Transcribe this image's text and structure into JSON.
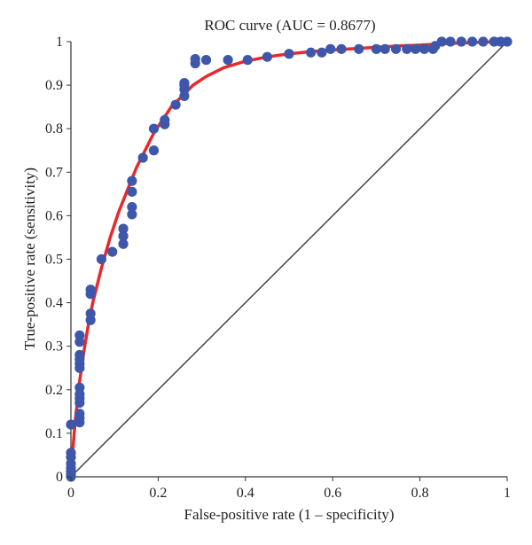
{
  "chart_data": {
    "type": "scatter",
    "title": "ROC curve (AUC = 0.8677)",
    "xlabel": "False-positive rate (1 – specificity)",
    "ylabel": "True-positive rate (sensitivity)",
    "xlim": [
      0,
      1
    ],
    "ylim": [
      0,
      1
    ],
    "x_ticks": [
      0,
      0.2,
      0.4,
      0.6,
      0.8,
      1
    ],
    "y_ticks": [
      0,
      0.1,
      0.2,
      0.3,
      0.4,
      0.5,
      0.6,
      0.7,
      0.8,
      0.9,
      1
    ],
    "x_tick_labels": [
      "0",
      "0.2",
      "0.4",
      "0.6",
      "0.8",
      "1"
    ],
    "y_tick_labels": [
      "0",
      "0.1",
      "0.2",
      "0.3",
      "0.4",
      "0.5",
      "0.6",
      "0.7",
      "0.8",
      "0.9",
      "1"
    ],
    "grid": false,
    "colors": {
      "points": "#3f57aa",
      "fit": "#e8282b",
      "diagonal": "#444444",
      "axis": "#333333"
    },
    "points": [
      [
        0,
        0
      ],
      [
        0,
        0.005
      ],
      [
        0,
        0.012
      ],
      [
        0,
        0.02
      ],
      [
        0,
        0.03
      ],
      [
        0,
        0.045
      ],
      [
        0,
        0.055
      ],
      [
        0,
        0.12
      ],
      [
        0.02,
        0.125
      ],
      [
        0.02,
        0.135
      ],
      [
        0.02,
        0.145
      ],
      [
        0.02,
        0.17
      ],
      [
        0.02,
        0.18
      ],
      [
        0.02,
        0.19
      ],
      [
        0.02,
        0.205
      ],
      [
        0.02,
        0.25
      ],
      [
        0.02,
        0.26
      ],
      [
        0.02,
        0.27
      ],
      [
        0.02,
        0.28
      ],
      [
        0.02,
        0.31
      ],
      [
        0.02,
        0.325
      ],
      [
        0.045,
        0.36
      ],
      [
        0.045,
        0.375
      ],
      [
        0.045,
        0.42
      ],
      [
        0.045,
        0.43
      ],
      [
        0.07,
        0.5
      ],
      [
        0.095,
        0.517
      ],
      [
        0.12,
        0.535
      ],
      [
        0.12,
        0.553
      ],
      [
        0.12,
        0.57
      ],
      [
        0.14,
        0.603
      ],
      [
        0.14,
        0.62
      ],
      [
        0.14,
        0.655
      ],
      [
        0.14,
        0.68
      ],
      [
        0.165,
        0.733
      ],
      [
        0.19,
        0.75
      ],
      [
        0.19,
        0.8
      ],
      [
        0.215,
        0.81
      ],
      [
        0.215,
        0.82
      ],
      [
        0.24,
        0.855
      ],
      [
        0.26,
        0.875
      ],
      [
        0.26,
        0.89
      ],
      [
        0.26,
        0.9
      ],
      [
        0.26,
        0.905
      ],
      [
        0.285,
        0.95
      ],
      [
        0.285,
        0.96
      ],
      [
        0.31,
        0.958
      ],
      [
        0.36,
        0.958
      ],
      [
        0.405,
        0.958
      ],
      [
        0.45,
        0.965
      ],
      [
        0.5,
        0.972
      ],
      [
        0.55,
        0.975
      ],
      [
        0.575,
        0.975
      ],
      [
        0.595,
        0.983
      ],
      [
        0.62,
        0.983
      ],
      [
        0.66,
        0.983
      ],
      [
        0.7,
        0.983
      ],
      [
        0.72,
        0.983
      ],
      [
        0.745,
        0.983
      ],
      [
        0.77,
        0.983
      ],
      [
        0.79,
        0.983
      ],
      [
        0.81,
        0.983
      ],
      [
        0.83,
        0.983
      ],
      [
        0.835,
        0.99
      ],
      [
        0.85,
        1
      ],
      [
        0.87,
        1
      ],
      [
        0.895,
        1
      ],
      [
        0.92,
        1
      ],
      [
        0.945,
        1
      ],
      [
        0.97,
        1
      ],
      [
        0.985,
        1
      ],
      [
        1,
        1
      ]
    ],
    "fit_curve": [
      [
        0,
        0
      ],
      [
        0.005,
        0.07
      ],
      [
        0.01,
        0.13
      ],
      [
        0.02,
        0.22
      ],
      [
        0.03,
        0.29
      ],
      [
        0.04,
        0.35
      ],
      [
        0.05,
        0.4
      ],
      [
        0.07,
        0.48
      ],
      [
        0.09,
        0.55
      ],
      [
        0.11,
        0.61
      ],
      [
        0.13,
        0.66
      ],
      [
        0.15,
        0.71
      ],
      [
        0.17,
        0.75
      ],
      [
        0.19,
        0.79
      ],
      [
        0.21,
        0.82
      ],
      [
        0.23,
        0.85
      ],
      [
        0.25,
        0.87
      ],
      [
        0.28,
        0.9
      ],
      [
        0.31,
        0.92
      ],
      [
        0.35,
        0.94
      ],
      [
        0.4,
        0.955
      ],
      [
        0.45,
        0.965
      ],
      [
        0.5,
        0.972
      ],
      [
        0.55,
        0.977
      ],
      [
        0.6,
        0.981
      ],
      [
        0.65,
        0.984
      ],
      [
        0.7,
        0.987
      ],
      [
        0.75,
        0.99
      ],
      [
        0.8,
        0.992
      ],
      [
        0.85,
        0.995
      ],
      [
        0.9,
        0.997
      ],
      [
        0.95,
        0.999
      ],
      [
        1,
        1
      ]
    ],
    "reference_line": [
      [
        0,
        0
      ],
      [
        1,
        1
      ]
    ]
  }
}
